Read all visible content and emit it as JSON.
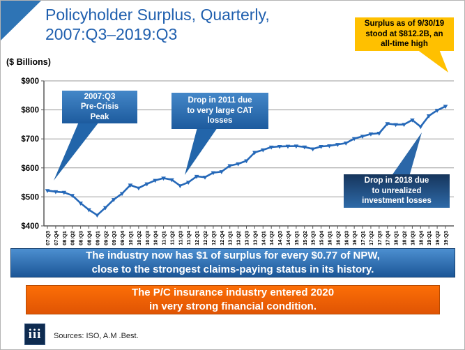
{
  "slide": {
    "title": "Policyholder Surplus, Quarterly,\n2007:Q3–2019:Q3",
    "units_label": "($ Billions)",
    "logo_text": "iii",
    "sources": "Sources: ISO, A.M .Best."
  },
  "callouts": {
    "peak_2007": "2007:Q3\nPre-Crisis\nPeak",
    "drop_2011": "Drop in 2011 due\nto very large CAT\nlosses",
    "drop_2018": "Drop in 2018 due\nto unrealized\ninvestment losses",
    "all_time_high": "Surplus as of 9/30/19\nstood at $812.2B, an\nall-time high"
  },
  "banners": {
    "blue": "The industry now has $1 of surplus for every $0.77 of NPW,\nclose to the strongest claims-paying status in its history.",
    "orange": "The P/C insurance industry entered 2020\nin very strong financial condition."
  },
  "colors": {
    "title_blue": "#1F5FAE",
    "accent_blue": "#2E74B5",
    "line_blue": "#2568B8",
    "callout_yellow": "#FFC000",
    "banner_orange": "#EA5E06",
    "gridline_gray": "#9a9a9a"
  },
  "chart_data": {
    "type": "line",
    "title": "Policyholder Surplus, Quarterly, 2007:Q3–2019:Q3",
    "xlabel": "",
    "ylabel": "($ Billions)",
    "ylim": [
      400,
      900
    ],
    "ytick_step": 100,
    "ytick_prefix": "$",
    "grid": true,
    "legend": false,
    "line_color": "#2568B8",
    "categories": [
      "07:Q3",
      "07:Q4",
      "08:Q1",
      "08:Q2",
      "08:Q3",
      "08:Q4",
      "09:Q1",
      "09:Q2",
      "09:Q3",
      "09:Q4",
      "10:Q1",
      "10:Q2",
      "10:Q3",
      "10:Q4",
      "11:Q1",
      "11:Q2",
      "11:Q3",
      "11:Q4",
      "12:Q1",
      "12:Q2",
      "12:Q3",
      "12:Q4",
      "13:Q1",
      "13:Q2",
      "13:Q3",
      "13:Q4",
      "14:Q1",
      "14:Q2",
      "14:Q3",
      "14:Q4",
      "15:Q1",
      "15:Q2",
      "15:Q3",
      "15:Q4",
      "16:Q1",
      "16:Q2",
      "16:Q3",
      "16:Q4",
      "17:Q1",
      "17:Q2",
      "17:Q3",
      "17:Q4",
      "18:Q1",
      "18:Q2",
      "18:Q3",
      "18:Q4",
      "19:Q1",
      "19:Q2",
      "19:Q3"
    ],
    "series": [
      {
        "name": "Policyholder Surplus ($ Billions)",
        "values": [
          521.8,
          517.9,
          515.6,
          505.0,
          478.5,
          455.6,
          437.1,
          463.0,
          490.8,
          511.5,
          540.7,
          530.5,
          544.8,
          556.9,
          564.7,
          559.1,
          538.6,
          550.3,
          570.7,
          567.8,
          583.5,
          586.9,
          607.7,
          614.0,
          624.4,
          653.3,
          662.0,
          671.6,
          673.9,
          674.7,
          675.2,
          672.1,
          665.4,
          673.7,
          676.3,
          680.6,
          685.5,
          700.9,
          709.0,
          717.0,
          719.4,
          752.5,
          749.3,
          749.7,
          765.2,
          742.1,
          779.5,
          798.5,
          812.2
        ]
      }
    ],
    "annotations": [
      "2007:Q3 Pre-Crisis Peak",
      "Drop in 2011 due to very large CAT losses",
      "Drop in 2018 due to unrealized investment losses",
      "Surplus as of 9/30/19 stood at $812.2B, an all-time high"
    ]
  }
}
